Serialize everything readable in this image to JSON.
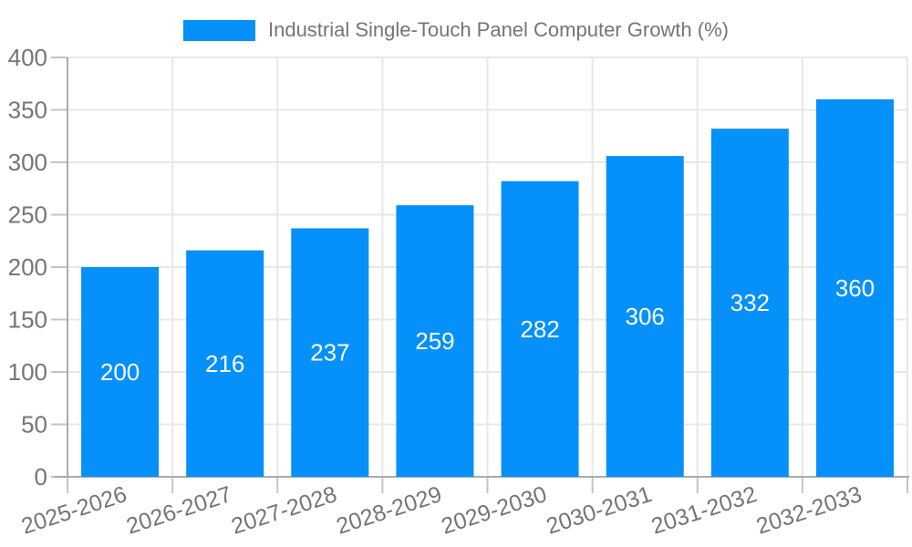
{
  "chart_data": {
    "type": "bar",
    "title": "Industrial Single-Touch Panel Computer Growth (%)",
    "categories": [
      "2025-2026",
      "2026-2027",
      "2027-2028",
      "2028-2029",
      "2029-2030",
      "2030-2031",
      "2031-2032",
      "2032-2033"
    ],
    "values": [
      200,
      216,
      237,
      259,
      282,
      306,
      332,
      360
    ],
    "series_name": "Industrial Single-Touch Panel Computer Growth (%)",
    "xlabel": "",
    "ylabel": "",
    "ylim": [
      0,
      400
    ],
    "yticks": [
      0,
      50,
      100,
      150,
      200,
      250,
      300,
      350,
      400
    ],
    "grid": true,
    "legend_position": "top-center",
    "value_labels_inside_bars": true,
    "colors": {
      "bar": "#0590FA",
      "bar_value_label": "#FFFFFF",
      "axis_text": "#757575",
      "axis_line": "#ABABAB",
      "tick_line": "#C4C4C4",
      "gridline": "#E8E8E8",
      "background": "#FFFFFF"
    }
  },
  "legend": {
    "items": [
      {
        "label": "Industrial Single-Touch Panel Computer Growth (%)",
        "color": "#0590FA"
      }
    ]
  }
}
